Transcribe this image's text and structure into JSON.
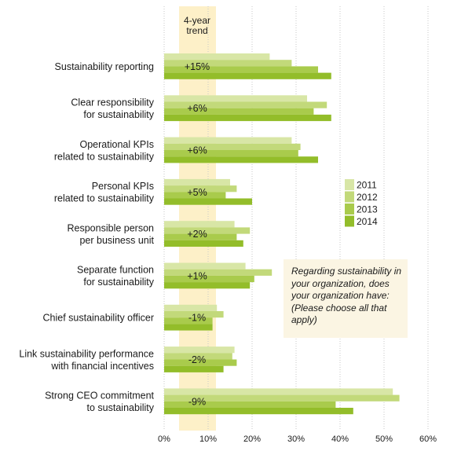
{
  "chart_data": {
    "type": "bar",
    "orientation": "horizontal",
    "trend_header": "4-year\ntrend",
    "question": "Regarding sustainability in your organization, does your organization have:  (Please choose all that apply)",
    "categories": [
      "Sustainability reporting",
      "Clear responsibility\nfor sustainability",
      "Operational KPIs\nrelated to sustainability",
      "Personal KPIs\nrelated to sustainability",
      "Responsible person\nper business unit",
      "Separate function\nfor sustainability",
      "Chief sustainability officer",
      "Link sustainability performance\nwith financial incentives",
      "Strong CEO commitment\nto sustainability"
    ],
    "trend": [
      "+15%",
      "+6%",
      "+6%",
      "+5%",
      "+2%",
      "+1%",
      "-1%",
      "-2%",
      "-9%"
    ],
    "series": [
      {
        "name": "2011",
        "color": "#d8e6a6",
        "values": [
          24,
          32.5,
          29,
          15,
          16,
          18.5,
          12,
          16,
          52
        ]
      },
      {
        "name": "2012",
        "color": "#c2d97a",
        "values": [
          29,
          37,
          31,
          16.5,
          19.5,
          24.5,
          13.5,
          15.5,
          53.5
        ]
      },
      {
        "name": "2013",
        "color": "#a9cb4c",
        "values": [
          35,
          34,
          30.5,
          14,
          16.5,
          20.5,
          11,
          16.5,
          39
        ]
      },
      {
        "name": "2014",
        "color": "#93bd2a",
        "values": [
          38,
          38,
          35,
          20,
          18,
          19.5,
          11,
          13.5,
          43
        ]
      }
    ],
    "xlim": [
      0,
      60
    ],
    "xticks": [
      "0%",
      "10%",
      "20%",
      "30%",
      "40%",
      "50%",
      "60%"
    ],
    "grid": true,
    "trend_band_color": "#fdf0c8",
    "legend_position": "right"
  }
}
